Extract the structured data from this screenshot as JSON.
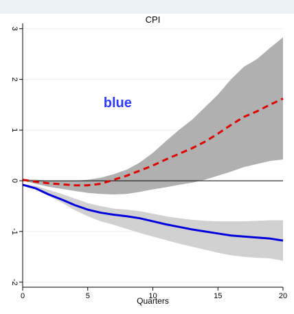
{
  "chart_data": {
    "type": "line",
    "title": "CPI",
    "xlabel": "Quarters",
    "ylabel": "",
    "xlim": [
      0,
      20
    ],
    "ylim": [
      -2.1,
      3.2
    ],
    "x_ticks": [
      0,
      5,
      10,
      15,
      20
    ],
    "y_ticks": [
      -2,
      -1,
      0,
      1,
      2,
      3
    ],
    "x_tick_labels": [
      "0",
      "5",
      "10",
      "15",
      "20"
    ],
    "y_tick_labels": [
      "-2",
      "-1",
      "0",
      "1",
      "2",
      "3"
    ],
    "annotation": {
      "text": "blue",
      "x": 7.3,
      "y": 1.45,
      "color": "#2e3cff"
    },
    "grid": true,
    "zero_line": 0,
    "bands": [
      {
        "color": "#b0b0b0",
        "x": [
          0,
          1,
          2,
          3,
          4,
          5,
          6,
          7,
          8,
          9,
          10,
          11,
          12,
          13,
          14,
          15,
          16,
          17,
          18,
          19,
          20
        ],
        "upper": [
          0.03,
          0.02,
          0.0,
          0.0,
          0.0,
          0.02,
          0.06,
          0.13,
          0.22,
          0.36,
          0.55,
          0.78,
          1.0,
          1.2,
          1.45,
          1.7,
          2.0,
          2.25,
          2.4,
          2.62,
          2.83
        ],
        "lower": [
          0.0,
          -0.06,
          -0.12,
          -0.16,
          -0.2,
          -0.24,
          -0.26,
          -0.27,
          -0.26,
          -0.22,
          -0.17,
          -0.13,
          -0.08,
          -0.04,
          0.02,
          0.1,
          0.18,
          0.27,
          0.33,
          0.39,
          0.42
        ]
      },
      {
        "color": "#d1d1d1",
        "x": [
          0,
          1,
          2,
          3,
          4,
          5,
          6,
          7,
          8,
          9,
          10,
          11,
          12,
          13,
          14,
          15,
          16,
          17,
          18,
          19,
          20
        ],
        "upper": [
          -0.06,
          -0.1,
          -0.18,
          -0.26,
          -0.35,
          -0.44,
          -0.5,
          -0.55,
          -0.57,
          -0.6,
          -0.65,
          -0.7,
          -0.74,
          -0.77,
          -0.79,
          -0.8,
          -0.8,
          -0.8,
          -0.79,
          -0.78,
          -0.78
        ],
        "lower": [
          -0.1,
          -0.17,
          -0.3,
          -0.43,
          -0.58,
          -0.7,
          -0.8,
          -0.87,
          -0.95,
          -1.03,
          -1.1,
          -1.17,
          -1.24,
          -1.3,
          -1.36,
          -1.42,
          -1.47,
          -1.5,
          -1.52,
          -1.53,
          -1.58
        ]
      }
    ],
    "series": [
      {
        "color": "#dd0000",
        "style": "dashed",
        "x": [
          0,
          1,
          2,
          3,
          4,
          5,
          6,
          7,
          8,
          9,
          10,
          11,
          12,
          13,
          14,
          15,
          16,
          17,
          18,
          19,
          20
        ],
        "values": [
          0.02,
          -0.02,
          -0.05,
          -0.07,
          -0.09,
          -0.09,
          -0.06,
          0.02,
          0.1,
          0.2,
          0.3,
          0.42,
          0.53,
          0.64,
          0.77,
          0.93,
          1.1,
          1.26,
          1.37,
          1.5,
          1.62
        ]
      },
      {
        "color": "#0000dd",
        "style": "solid",
        "x": [
          0,
          1,
          2,
          3,
          4,
          5,
          6,
          7,
          8,
          9,
          10,
          11,
          12,
          13,
          14,
          15,
          16,
          17,
          18,
          19,
          20
        ],
        "values": [
          -0.08,
          -0.15,
          -0.27,
          -0.37,
          -0.48,
          -0.57,
          -0.63,
          -0.67,
          -0.7,
          -0.74,
          -0.8,
          -0.86,
          -0.91,
          -0.96,
          -1.0,
          -1.04,
          -1.08,
          -1.1,
          -1.12,
          -1.14,
          -1.18
        ]
      }
    ]
  }
}
